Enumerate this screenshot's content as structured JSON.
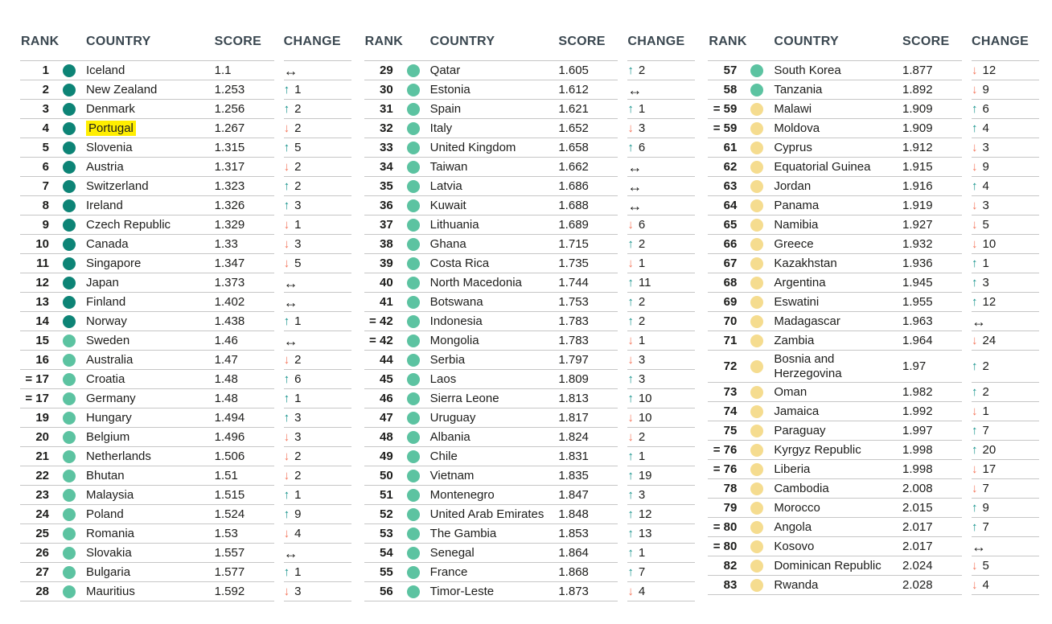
{
  "colors": {
    "tier_dark": "#0d8476",
    "tier_green": "#5cc3a1",
    "tier_yellow": "#f5dc8f",
    "up": "#12918a",
    "down": "#f4765c",
    "same": "#1d1d1b",
    "header_text": "#3a4750",
    "divider": "#c6c6c6",
    "highlight": "#ffee00"
  },
  "icons": {
    "up_arrow": "↑",
    "down_arrow": "↓",
    "same_arrow": "↔"
  },
  "table": {
    "headers": {
      "rank": "RANK",
      "country": "COUNTRY",
      "score": "SCORE",
      "change": "CHANGE"
    },
    "columns": [
      {
        "rows": [
          {
            "rank": "1",
            "country": "Iceland",
            "score": "1.1",
            "tier": "dark",
            "change": "same",
            "change_value": null
          },
          {
            "rank": "2",
            "country": "New Zealand",
            "score": "1.253",
            "tier": "dark",
            "change": "up",
            "change_value": "1"
          },
          {
            "rank": "3",
            "country": "Denmark",
            "score": "1.256",
            "tier": "dark",
            "change": "up",
            "change_value": "2"
          },
          {
            "rank": "4",
            "country": "Portugal",
            "score": "1.267",
            "tier": "dark",
            "change": "down",
            "change_value": "2",
            "highlight": true
          },
          {
            "rank": "5",
            "country": "Slovenia",
            "score": "1.315",
            "tier": "dark",
            "change": "up",
            "change_value": "5"
          },
          {
            "rank": "6",
            "country": "Austria",
            "score": "1.317",
            "tier": "dark",
            "change": "down",
            "change_value": "2"
          },
          {
            "rank": "7",
            "country": "Switzerland",
            "score": "1.323",
            "tier": "dark",
            "change": "up",
            "change_value": "2"
          },
          {
            "rank": "8",
            "country": "Ireland",
            "score": "1.326",
            "tier": "dark",
            "change": "up",
            "change_value": "3"
          },
          {
            "rank": "9",
            "country": "Czech Republic",
            "score": "1.329",
            "tier": "dark",
            "change": "down",
            "change_value": "1"
          },
          {
            "rank": "10",
            "country": "Canada",
            "score": "1.33",
            "tier": "dark",
            "change": "down",
            "change_value": "3"
          },
          {
            "rank": "11",
            "country": "Singapore",
            "score": "1.347",
            "tier": "dark",
            "change": "down",
            "change_value": "5"
          },
          {
            "rank": "12",
            "country": "Japan",
            "score": "1.373",
            "tier": "dark",
            "change": "same",
            "change_value": null
          },
          {
            "rank": "13",
            "country": "Finland",
            "score": "1.402",
            "tier": "dark",
            "change": "same",
            "change_value": null
          },
          {
            "rank": "14",
            "country": "Norway",
            "score": "1.438",
            "tier": "dark",
            "change": "up",
            "change_value": "1"
          },
          {
            "rank": "15",
            "country": "Sweden",
            "score": "1.46",
            "tier": "green",
            "change": "same",
            "change_value": null
          },
          {
            "rank": "16",
            "country": "Australia",
            "score": "1.47",
            "tier": "green",
            "change": "down",
            "change_value": "2"
          },
          {
            "rank": "= 17",
            "country": "Croatia",
            "score": "1.48",
            "tier": "green",
            "change": "up",
            "change_value": "6"
          },
          {
            "rank": "= 17",
            "country": "Germany",
            "score": "1.48",
            "tier": "green",
            "change": "up",
            "change_value": "1"
          },
          {
            "rank": "19",
            "country": "Hungary",
            "score": "1.494",
            "tier": "green",
            "change": "up",
            "change_value": "3"
          },
          {
            "rank": "20",
            "country": "Belgium",
            "score": "1.496",
            "tier": "green",
            "change": "down",
            "change_value": "3"
          },
          {
            "rank": "21",
            "country": "Netherlands",
            "score": "1.506",
            "tier": "green",
            "change": "down",
            "change_value": "2"
          },
          {
            "rank": "22",
            "country": "Bhutan",
            "score": "1.51",
            "tier": "green",
            "change": "down",
            "change_value": "2"
          },
          {
            "rank": "23",
            "country": "Malaysia",
            "score": "1.515",
            "tier": "green",
            "change": "up",
            "change_value": "1"
          },
          {
            "rank": "24",
            "country": "Poland",
            "score": "1.524",
            "tier": "green",
            "change": "up",
            "change_value": "9"
          },
          {
            "rank": "25",
            "country": "Romania",
            "score": "1.53",
            "tier": "green",
            "change": "down",
            "change_value": "4"
          },
          {
            "rank": "26",
            "country": "Slovakia",
            "score": "1.557",
            "tier": "green",
            "change": "same",
            "change_value": null
          },
          {
            "rank": "27",
            "country": "Bulgaria",
            "score": "1.577",
            "tier": "green",
            "change": "up",
            "change_value": "1"
          },
          {
            "rank": "28",
            "country": "Mauritius",
            "score": "1.592",
            "tier": "green",
            "change": "down",
            "change_value": "3"
          }
        ]
      },
      {
        "rows": [
          {
            "rank": "29",
            "country": "Qatar",
            "score": "1.605",
            "tier": "green",
            "change": "up",
            "change_value": "2"
          },
          {
            "rank": "30",
            "country": "Estonia",
            "score": "1.612",
            "tier": "green",
            "change": "same",
            "change_value": null
          },
          {
            "rank": "31",
            "country": "Spain",
            "score": "1.621",
            "tier": "green",
            "change": "up",
            "change_value": "1"
          },
          {
            "rank": "32",
            "country": "Italy",
            "score": "1.652",
            "tier": "green",
            "change": "down",
            "change_value": "3"
          },
          {
            "rank": "33",
            "country": "United Kingdom",
            "score": "1.658",
            "tier": "green",
            "change": "up",
            "change_value": "6"
          },
          {
            "rank": "34",
            "country": "Taiwan",
            "score": "1.662",
            "tier": "green",
            "change": "same",
            "change_value": null
          },
          {
            "rank": "35",
            "country": "Latvia",
            "score": "1.686",
            "tier": "green",
            "change": "same",
            "change_value": null
          },
          {
            "rank": "36",
            "country": "Kuwait",
            "score": "1.688",
            "tier": "green",
            "change": "same",
            "change_value": null
          },
          {
            "rank": "37",
            "country": "Lithuania",
            "score": "1.689",
            "tier": "green",
            "change": "down",
            "change_value": "6"
          },
          {
            "rank": "38",
            "country": "Ghana",
            "score": "1.715",
            "tier": "green",
            "change": "up",
            "change_value": "2"
          },
          {
            "rank": "39",
            "country": "Costa Rica",
            "score": "1.735",
            "tier": "green",
            "change": "down",
            "change_value": "1"
          },
          {
            "rank": "40",
            "country": "North Macedonia",
            "score": "1.744",
            "tier": "green",
            "change": "up",
            "change_value": "11"
          },
          {
            "rank": "41",
            "country": "Botswana",
            "score": "1.753",
            "tier": "green",
            "change": "up",
            "change_value": "2"
          },
          {
            "rank": "= 42",
            "country": "Indonesia",
            "score": "1.783",
            "tier": "green",
            "change": "up",
            "change_value": "2"
          },
          {
            "rank": "= 42",
            "country": "Mongolia",
            "score": "1.783",
            "tier": "green",
            "change": "down",
            "change_value": "1"
          },
          {
            "rank": "44",
            "country": "Serbia",
            "score": "1.797",
            "tier": "green",
            "change": "down",
            "change_value": "3"
          },
          {
            "rank": "45",
            "country": "Laos",
            "score": "1.809",
            "tier": "green",
            "change": "up",
            "change_value": "3"
          },
          {
            "rank": "46",
            "country": "Sierra Leone",
            "score": "1.813",
            "tier": "green",
            "change": "up",
            "change_value": "10"
          },
          {
            "rank": "47",
            "country": "Uruguay",
            "score": "1.817",
            "tier": "green",
            "change": "down",
            "change_value": "10"
          },
          {
            "rank": "48",
            "country": "Albania",
            "score": "1.824",
            "tier": "green",
            "change": "down",
            "change_value": "2"
          },
          {
            "rank": "49",
            "country": "Chile",
            "score": "1.831",
            "tier": "green",
            "change": "up",
            "change_value": "1"
          },
          {
            "rank": "50",
            "country": "Vietnam",
            "score": "1.835",
            "tier": "green",
            "change": "up",
            "change_value": "19"
          },
          {
            "rank": "51",
            "country": "Montenegro",
            "score": "1.847",
            "tier": "green",
            "change": "up",
            "change_value": "3"
          },
          {
            "rank": "52",
            "country": "United Arab Emirates",
            "score": "1.848",
            "tier": "green",
            "change": "up",
            "change_value": "12"
          },
          {
            "rank": "53",
            "country": "The Gambia",
            "score": "1.853",
            "tier": "green",
            "change": "up",
            "change_value": "13"
          },
          {
            "rank": "54",
            "country": "Senegal",
            "score": "1.864",
            "tier": "green",
            "change": "up",
            "change_value": "1"
          },
          {
            "rank": "55",
            "country": "France",
            "score": "1.868",
            "tier": "green",
            "change": "up",
            "change_value": "7"
          },
          {
            "rank": "56",
            "country": "Timor-Leste",
            "score": "1.873",
            "tier": "green",
            "change": "down",
            "change_value": "4"
          }
        ]
      },
      {
        "rows": [
          {
            "rank": "57",
            "country": "South Korea",
            "score": "1.877",
            "tier": "green",
            "change": "down",
            "change_value": "12"
          },
          {
            "rank": "58",
            "country": "Tanzania",
            "score": "1.892",
            "tier": "green",
            "change": "down",
            "change_value": "9"
          },
          {
            "rank": "= 59",
            "country": "Malawi",
            "score": "1.909",
            "tier": "yellow",
            "change": "up",
            "change_value": "6"
          },
          {
            "rank": "= 59",
            "country": "Moldova",
            "score": "1.909",
            "tier": "yellow",
            "change": "up",
            "change_value": "4"
          },
          {
            "rank": "61",
            "country": "Cyprus",
            "score": "1.912",
            "tier": "yellow",
            "change": "down",
            "change_value": "3"
          },
          {
            "rank": "62",
            "country": "Equatorial Guinea",
            "score": "1.915",
            "tier": "yellow",
            "change": "down",
            "change_value": "9"
          },
          {
            "rank": "63",
            "country": "Jordan",
            "score": "1.916",
            "tier": "yellow",
            "change": "up",
            "change_value": "4"
          },
          {
            "rank": "64",
            "country": "Panama",
            "score": "1.919",
            "tier": "yellow",
            "change": "down",
            "change_value": "3"
          },
          {
            "rank": "65",
            "country": "Namibia",
            "score": "1.927",
            "tier": "yellow",
            "change": "down",
            "change_value": "5"
          },
          {
            "rank": "66",
            "country": "Greece",
            "score": "1.932",
            "tier": "yellow",
            "change": "down",
            "change_value": "10"
          },
          {
            "rank": "67",
            "country": "Kazakhstan",
            "score": "1.936",
            "tier": "yellow",
            "change": "up",
            "change_value": "1"
          },
          {
            "rank": "68",
            "country": "Argentina",
            "score": "1.945",
            "tier": "yellow",
            "change": "up",
            "change_value": "3"
          },
          {
            "rank": "69",
            "country": "Eswatini",
            "score": "1.955",
            "tier": "yellow",
            "change": "up",
            "change_value": "12"
          },
          {
            "rank": "70",
            "country": "Madagascar",
            "score": "1.963",
            "tier": "yellow",
            "change": "same",
            "change_value": null
          },
          {
            "rank": "71",
            "country": "Zambia",
            "score": "1.964",
            "tier": "yellow",
            "change": "down",
            "change_value": "24"
          },
          {
            "rank": "72",
            "country": "Bosnia and Herzegovina",
            "score": "1.97",
            "tier": "yellow",
            "change": "up",
            "change_value": "2",
            "two_line": true
          },
          {
            "rank": "73",
            "country": "Oman",
            "score": "1.982",
            "tier": "yellow",
            "change": "up",
            "change_value": "2"
          },
          {
            "rank": "74",
            "country": "Jamaica",
            "score": "1.992",
            "tier": "yellow",
            "change": "down",
            "change_value": "1"
          },
          {
            "rank": "75",
            "country": "Paraguay",
            "score": "1.997",
            "tier": "yellow",
            "change": "up",
            "change_value": "7"
          },
          {
            "rank": "= 76",
            "country": "Kyrgyz Republic",
            "score": "1.998",
            "tier": "yellow",
            "change": "up",
            "change_value": "20"
          },
          {
            "rank": "= 76",
            "country": "Liberia",
            "score": "1.998",
            "tier": "yellow",
            "change": "down",
            "change_value": "17"
          },
          {
            "rank": "78",
            "country": "Cambodia",
            "score": "2.008",
            "tier": "yellow",
            "change": "down",
            "change_value": "7"
          },
          {
            "rank": "79",
            "country": "Morocco",
            "score": "2.015",
            "tier": "yellow",
            "change": "up",
            "change_value": "9"
          },
          {
            "rank": "= 80",
            "country": "Angola",
            "score": "2.017",
            "tier": "yellow",
            "change": "up",
            "change_value": "7"
          },
          {
            "rank": "= 80",
            "country": "Kosovo",
            "score": "2.017",
            "tier": "yellow",
            "change": "same",
            "change_value": null
          },
          {
            "rank": "82",
            "country": "Dominican Republic",
            "score": "2.024",
            "tier": "yellow",
            "change": "down",
            "change_value": "5"
          },
          {
            "rank": "83",
            "country": "Rwanda",
            "score": "2.028",
            "tier": "yellow",
            "change": "down",
            "change_value": "4"
          }
        ]
      }
    ]
  }
}
